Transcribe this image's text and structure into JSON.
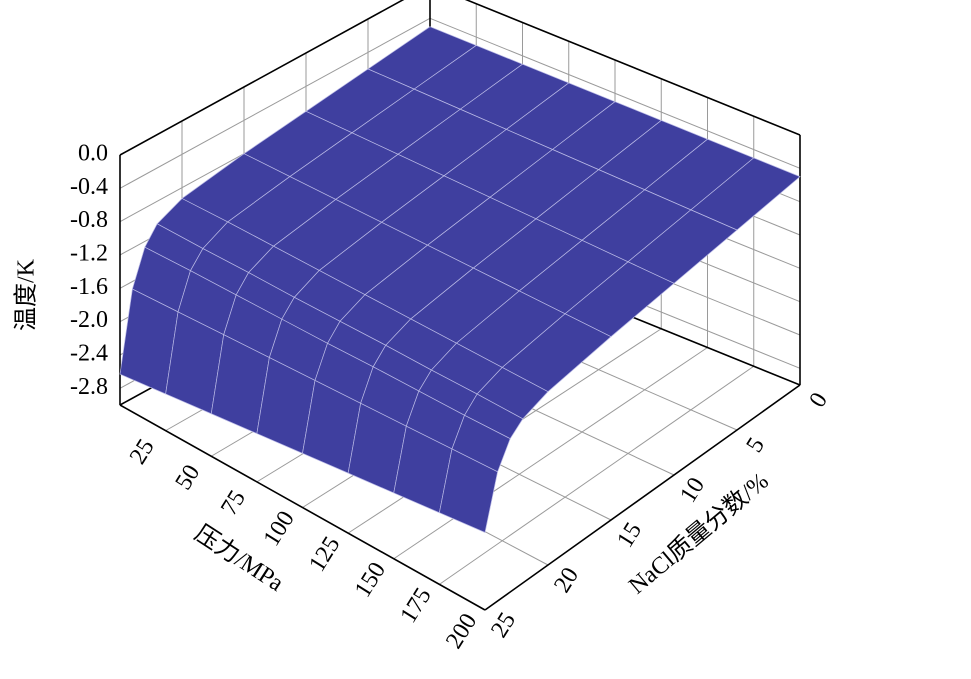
{
  "chart_data": {
    "type": "surface",
    "xlabel": "压力/MPa",
    "ylabel": "NaCl质量分数/%",
    "zlabel": "温度/K",
    "x": [
      0,
      25,
      50,
      75,
      100,
      125,
      150,
      175,
      200
    ],
    "y": [
      0,
      5,
      10,
      15,
      20,
      22,
      23,
      24,
      25
    ],
    "z": [
      [
        -0.5,
        -0.6,
        -0.7,
        -0.8,
        -0.93,
        -1.07,
        -1.27,
        -1.69,
        -2.63
      ],
      [
        -0.5,
        -0.6,
        -0.7,
        -0.8,
        -0.92,
        -1.07,
        -1.25,
        -1.66,
        -2.56
      ],
      [
        -0.5,
        -0.6,
        -0.7,
        -0.8,
        -0.92,
        -1.06,
        -1.24,
        -1.63,
        -2.49
      ],
      [
        -0.5,
        -0.6,
        -0.7,
        -0.8,
        -0.92,
        -1.06,
        -1.23,
        -1.6,
        -2.42
      ],
      [
        -0.5,
        -0.6,
        -0.7,
        -0.8,
        -0.92,
        -1.05,
        -1.22,
        -1.57,
        -2.35
      ],
      [
        -0.5,
        -0.6,
        -0.7,
        -0.8,
        -0.92,
        -1.04,
        -1.2,
        -1.54,
        -2.28
      ],
      [
        -0.5,
        -0.6,
        -0.7,
        -0.8,
        -0.92,
        -1.04,
        -1.19,
        -1.51,
        -2.21
      ],
      [
        -0.5,
        -0.6,
        -0.7,
        -0.8,
        -0.92,
        -1.03,
        -1.18,
        -1.48,
        -2.14
      ],
      [
        -0.5,
        -0.6,
        -0.7,
        -0.8,
        -0.92,
        -1.03,
        -1.16,
        -1.45,
        -2.07
      ]
    ],
    "color": "#3f3f9f",
    "mesh_color": "#b9b9e6",
    "xlim": [
      0,
      200
    ],
    "xticks": [
      25,
      50,
      75,
      100,
      125,
      150,
      175,
      200
    ],
    "ylim": [
      0,
      25
    ],
    "yticks": [
      0,
      5,
      10,
      15,
      20,
      25
    ],
    "zlim": [
      -3,
      0
    ],
    "zticks": [
      {
        "value": 0,
        "label": "0.0"
      },
      -0.4,
      -0.8,
      -1.2,
      -1.6,
      {
        "value": -2,
        "label": "-2.0"
      },
      -2.4,
      -2.8
    ],
    "grid": true
  }
}
